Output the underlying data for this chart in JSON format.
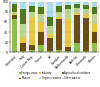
{
  "countries": [
    "Germany",
    "Italy",
    "Czech Rep.",
    "France",
    "UK",
    "Sweden",
    "Netherlands",
    "Austria",
    "Denmark",
    "Others"
  ],
  "categories": [
    "Energy crops",
    "Manure",
    "Industry",
    "Organic wastes",
    "Agricultural residues",
    "Other wastes"
  ],
  "colors": [
    "#8dc04b",
    "#6b4c11",
    "#e8c840",
    "#b8d98d",
    "#4e7a1e",
    "#aaddee"
  ],
  "bg_colors": [
    "#ffffff",
    "#fce8d8",
    "#ffffff",
    "#fce8d8",
    "#e8e8f0",
    "#d8eef8",
    "#fce8d8",
    "#d8eef8",
    "#ffffff",
    "#fce8d8"
  ],
  "data": [
    [
      65,
      8,
      2,
      5,
      15,
      5
    ],
    [
      3,
      15,
      12,
      25,
      30,
      15
    ],
    [
      5,
      10,
      55,
      10,
      12,
      8
    ],
    [
      15,
      25,
      20,
      15,
      15,
      10
    ],
    [
      3,
      25,
      8,
      15,
      18,
      31
    ],
    [
      5,
      60,
      5,
      10,
      12,
      8
    ],
    [
      3,
      8,
      55,
      20,
      8,
      6
    ],
    [
      18,
      55,
      5,
      10,
      7,
      5
    ],
    [
      3,
      65,
      8,
      10,
      8,
      6
    ],
    [
      18,
      22,
      15,
      20,
      15,
      10
    ]
  ],
  "ylim": [
    0,
    100
  ],
  "yticks": [
    0,
    20,
    40,
    60,
    80,
    100
  ],
  "bar_width": 0.65
}
